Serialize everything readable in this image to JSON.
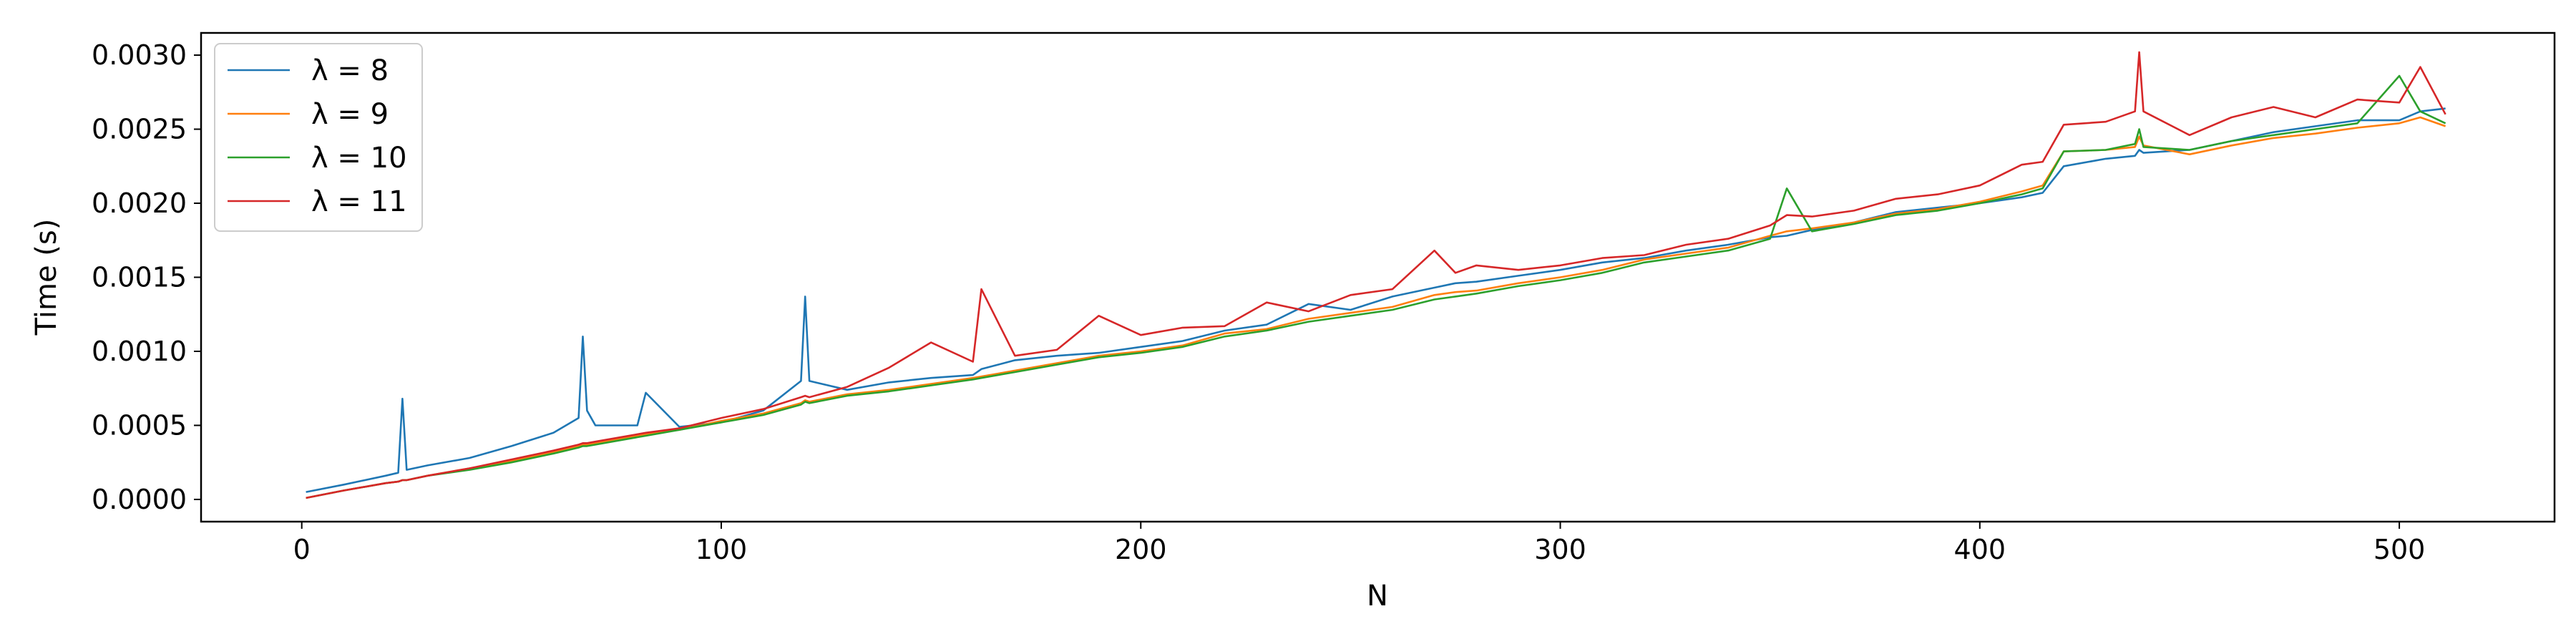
{
  "chart_data": {
    "type": "line",
    "title": "",
    "xlabel": "N",
    "ylabel": "Time (s)",
    "xlim": [
      -24,
      537
    ],
    "ylim": [
      -0.00015,
      0.00315
    ],
    "xticks": [
      0,
      100,
      200,
      300,
      400,
      500
    ],
    "xtick_labels": [
      "0",
      "100",
      "200",
      "300",
      "400",
      "500"
    ],
    "yticks": [
      0,
      0.0005,
      0.001,
      0.0015,
      0.002,
      0.0025,
      0.003
    ],
    "ytick_labels": [
      "0.0000",
      "0.0005",
      "0.0010",
      "0.0015",
      "0.0020",
      "0.0025",
      "0.0030"
    ],
    "grid": false,
    "legend_position": "top-left",
    "x": [
      1,
      10,
      20,
      23,
      24,
      25,
      30,
      40,
      50,
      60,
      66,
      67,
      68,
      70,
      80,
      82,
      90,
      100,
      110,
      119,
      120,
      121,
      130,
      140,
      150,
      160,
      162,
      170,
      180,
      190,
      200,
      210,
      220,
      230,
      240,
      250,
      260,
      270,
      275,
      280,
      290,
      300,
      310,
      320,
      330,
      340,
      350,
      354,
      360,
      370,
      380,
      390,
      400,
      410,
      415,
      420,
      430,
      437,
      438,
      439,
      450,
      460,
      470,
      480,
      490,
      500,
      505,
      511
    ],
    "series": [
      {
        "name": "λ = 8",
        "color": "#1f77b4",
        "values": [
          5e-05,
          0.0001,
          0.00016,
          0.00018,
          0.00068,
          0.0002,
          0.00023,
          0.00028,
          0.00036,
          0.00045,
          0.00055,
          0.0011,
          0.0006,
          0.0005,
          0.0005,
          0.00072,
          0.00049,
          0.00052,
          0.0006,
          0.0008,
          0.00137,
          0.0008,
          0.00074,
          0.00079,
          0.00082,
          0.00084,
          0.00088,
          0.00094,
          0.00097,
          0.00099,
          0.00103,
          0.00107,
          0.00114,
          0.00118,
          0.00132,
          0.00128,
          0.00137,
          0.00143,
          0.00146,
          0.00147,
          0.00151,
          0.00155,
          0.0016,
          0.00163,
          0.00168,
          0.00172,
          0.00177,
          0.00178,
          0.00182,
          0.00187,
          0.00194,
          0.00197,
          0.002,
          0.00204,
          0.00207,
          0.00225,
          0.0023,
          0.00232,
          0.00236,
          0.00234,
          0.00236,
          0.00242,
          0.00248,
          0.00252,
          0.00256,
          0.00256,
          0.00262,
          0.00264
        ]
      },
      {
        "name": "λ = 9",
        "color": "#ff7f0e",
        "values": [
          1e-05,
          6e-05,
          0.00011,
          0.00012,
          0.00013,
          0.00013,
          0.00016,
          0.00021,
          0.00026,
          0.00032,
          0.00036,
          0.00037,
          0.00037,
          0.00038,
          0.00043,
          0.00044,
          0.00047,
          0.00053,
          0.00058,
          0.00065,
          0.00067,
          0.00066,
          0.00071,
          0.00074,
          0.00078,
          0.00082,
          0.00083,
          0.00087,
          0.00092,
          0.00097,
          0.001,
          0.00104,
          0.00112,
          0.00115,
          0.00122,
          0.00126,
          0.0013,
          0.00138,
          0.0014,
          0.00141,
          0.00146,
          0.0015,
          0.00155,
          0.00162,
          0.00166,
          0.0017,
          0.00178,
          0.00181,
          0.00183,
          0.00187,
          0.00193,
          0.00196,
          0.00201,
          0.00208,
          0.00212,
          0.00235,
          0.00236,
          0.00238,
          0.00245,
          0.00239,
          0.00233,
          0.00239,
          0.00244,
          0.00247,
          0.00251,
          0.00254,
          0.00258,
          0.00252
        ]
      },
      {
        "name": "λ = 10",
        "color": "#2ca02c",
        "values": [
          1e-05,
          6e-05,
          0.00011,
          0.00012,
          0.00013,
          0.00013,
          0.00016,
          0.0002,
          0.00025,
          0.00031,
          0.00035,
          0.00036,
          0.00036,
          0.00037,
          0.00042,
          0.00043,
          0.00047,
          0.00052,
          0.00057,
          0.00064,
          0.00066,
          0.00065,
          0.0007,
          0.00073,
          0.00077,
          0.00081,
          0.00082,
          0.00086,
          0.00091,
          0.00096,
          0.00099,
          0.00103,
          0.0011,
          0.00114,
          0.0012,
          0.00124,
          0.00128,
          0.00135,
          0.00137,
          0.00139,
          0.00144,
          0.00148,
          0.00153,
          0.0016,
          0.00164,
          0.00168,
          0.00176,
          0.0021,
          0.00181,
          0.00186,
          0.00192,
          0.00195,
          0.002,
          0.00206,
          0.0021,
          0.00235,
          0.00236,
          0.0024,
          0.0025,
          0.00238,
          0.00236,
          0.00242,
          0.00246,
          0.0025,
          0.00254,
          0.00286,
          0.00262,
          0.00254
        ]
      },
      {
        "name": "λ = 11",
        "color": "#d62728",
        "values": [
          1e-05,
          6e-05,
          0.00011,
          0.00012,
          0.00013,
          0.00013,
          0.00016,
          0.00021,
          0.00027,
          0.00033,
          0.00037,
          0.00038,
          0.00038,
          0.00039,
          0.00044,
          0.00045,
          0.00048,
          0.00055,
          0.00061,
          0.00069,
          0.0007,
          0.00069,
          0.00076,
          0.00089,
          0.00106,
          0.00093,
          0.00142,
          0.00097,
          0.00101,
          0.00124,
          0.00111,
          0.00116,
          0.00117,
          0.00133,
          0.00127,
          0.00138,
          0.00142,
          0.00168,
          0.00153,
          0.00158,
          0.00155,
          0.00158,
          0.00163,
          0.00165,
          0.00172,
          0.00176,
          0.00185,
          0.00192,
          0.00191,
          0.00195,
          0.00203,
          0.00206,
          0.00212,
          0.00226,
          0.00228,
          0.00253,
          0.00255,
          0.00262,
          0.00302,
          0.00262,
          0.00246,
          0.00258,
          0.00265,
          0.00258,
          0.0027,
          0.00268,
          0.00292,
          0.0026
        ]
      }
    ]
  }
}
